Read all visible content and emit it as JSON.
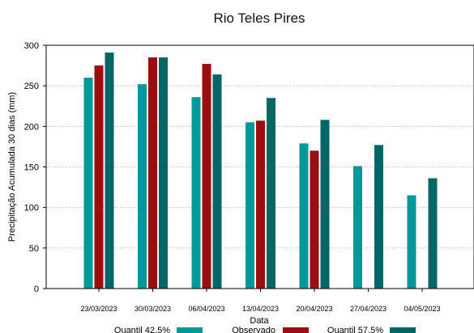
{
  "chart_data": {
    "type": "bar",
    "title": "Rio Teles Pires",
    "xlabel": "Data",
    "ylabel": "Precipitação Acumulada 30 dias (mm)",
    "ylim": [
      0,
      300
    ],
    "yticks": [
      0,
      50,
      100,
      150,
      200,
      250,
      300
    ],
    "grid": true,
    "legend_position": "bottom",
    "categories": [
      "23/03/2023",
      "30/03/2023",
      "06/04/2023",
      "13/04/2023",
      "20/04/2023",
      "27/04/2023",
      "04/05/2023"
    ],
    "series": [
      {
        "name": "Quantil 42.5%",
        "color": "#009999",
        "values": [
          260,
          252,
          236,
          205,
          179,
          151,
          115
        ]
      },
      {
        "name": "Observado",
        "color": "#990e0e",
        "values": [
          275,
          285,
          277,
          207,
          170,
          null,
          null
        ]
      },
      {
        "name": "Quantil 57.5%",
        "color": "#006666",
        "values": [
          291,
          285,
          264,
          235,
          208,
          177,
          136
        ]
      }
    ]
  }
}
